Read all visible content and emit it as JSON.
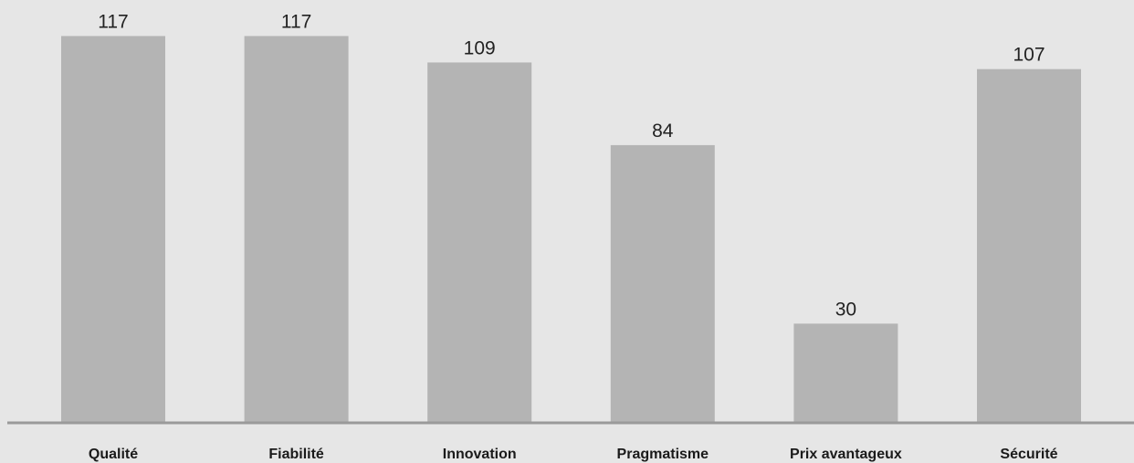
{
  "chart_data": {
    "type": "bar",
    "categories": [
      "Qualité",
      "Fiabilité",
      "Innovation",
      "Pragmatisme",
      "Prix avantageux",
      "Sécurité"
    ],
    "values": [
      117,
      117,
      109,
      84,
      30,
      107
    ],
    "title": "",
    "xlabel": "",
    "ylabel": "",
    "ylim": [
      0,
      120
    ],
    "grid": false,
    "legend": "none",
    "colors": {
      "bar": "#b4b4b4",
      "axis": "#9a9a9a",
      "background": "#e6e6e6",
      "text": "#222222"
    }
  }
}
